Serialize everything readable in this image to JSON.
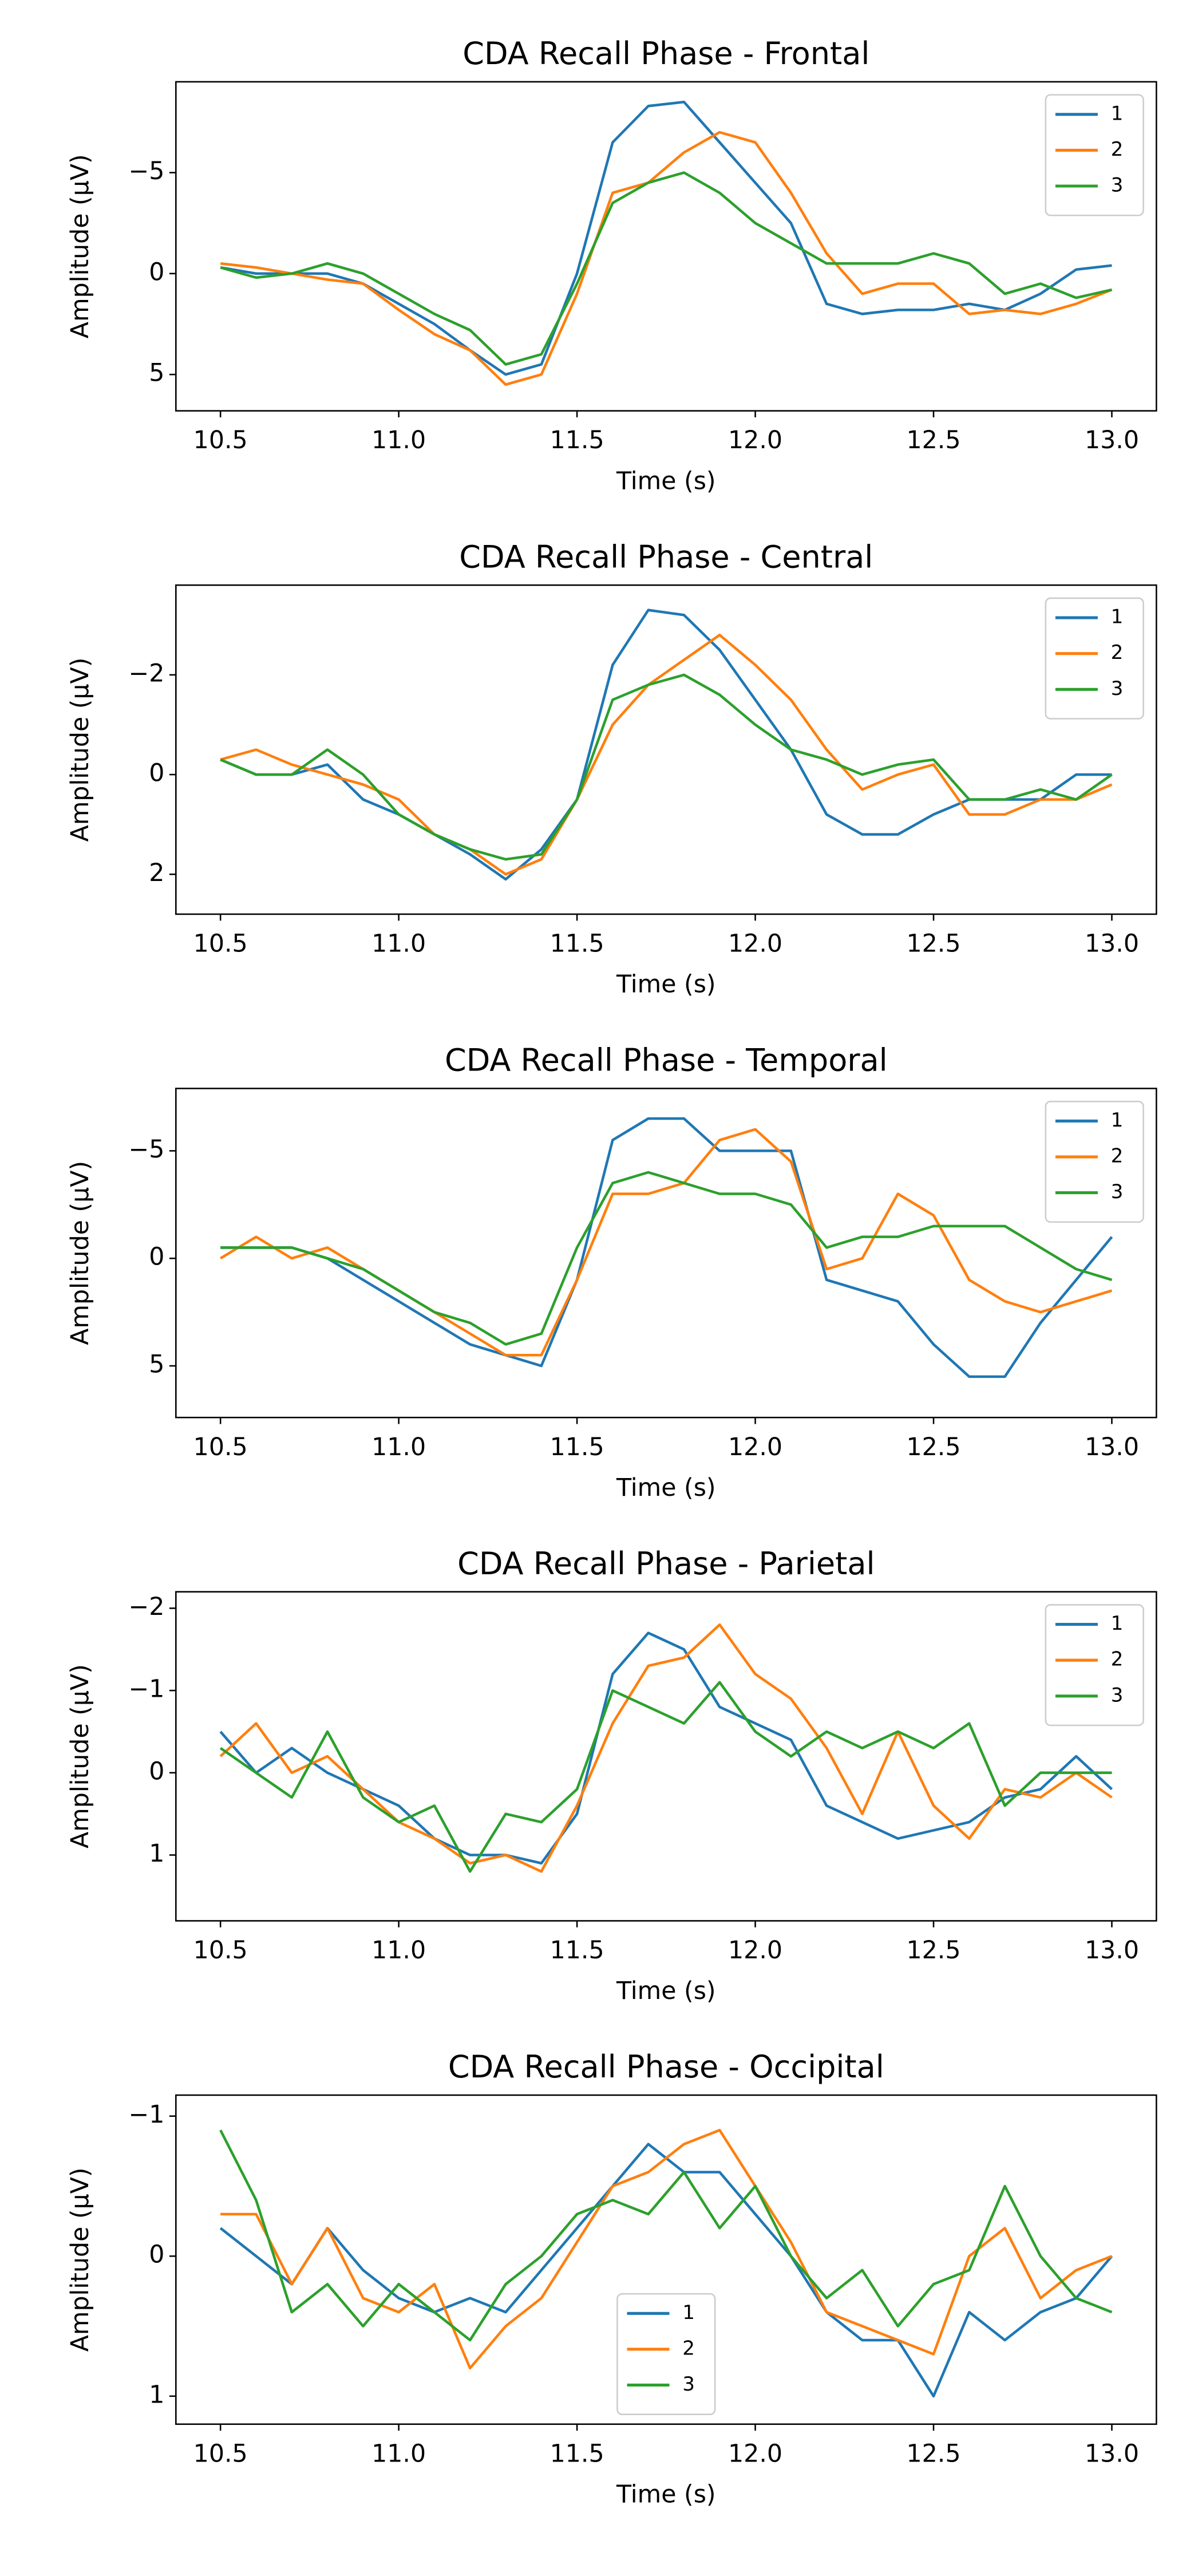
{
  "chart_data": [
    {
      "type": "line",
      "title": "CDA Recall Phase - Frontal",
      "xlabel": "Time (s)",
      "ylabel": "Amplitude (µV)",
      "legend": "upper right",
      "x": [
        10.5,
        10.6,
        10.7,
        10.8,
        10.9,
        11.0,
        11.1,
        11.2,
        11.3,
        11.4,
        11.5,
        11.6,
        11.7,
        11.8,
        11.9,
        12.0,
        12.1,
        12.2,
        12.3,
        12.4,
        12.5,
        12.6,
        12.7,
        12.8,
        12.9,
        13.0
      ],
      "xlim": [
        10.375,
        13.125
      ],
      "xticks": [
        10.5,
        {
          "value": 11,
          "label": "11.0"
        },
        11.5,
        {
          "value": 12,
          "label": "12.0"
        },
        12.5,
        {
          "value": 13,
          "label": "13.0"
        }
      ],
      "ylim": [
        6.8,
        -9.5
      ],
      "yticks": [
        5,
        0,
        {
          "value": -5,
          "label": "−5"
        }
      ],
      "series": [
        {
          "name": "1",
          "color": "#1f77b4",
          "values": [
            -0.3,
            0,
            0,
            0,
            0.5,
            1.5,
            2.5,
            3.8,
            5.0,
            4.5,
            0,
            -6.5,
            -8.3,
            -8.5,
            -6.5,
            -4.5,
            -2.5,
            1.5,
            2.0,
            1.8,
            1.8,
            1.5,
            1.8,
            1.0,
            -0.2,
            -0.4
          ]
        },
        {
          "name": "2",
          "color": "#ff7f0e",
          "values": [
            -0.5,
            -0.3,
            0,
            0.3,
            0.5,
            1.8,
            3,
            3.8,
            5.5,
            5,
            1,
            -4,
            -4.5,
            -6,
            -7,
            -6.5,
            -4,
            -1,
            1,
            0.5,
            0.5,
            2,
            1.8,
            2,
            1.5,
            0.8
          ]
        },
        {
          "name": "3",
          "color": "#2ca02c",
          "values": [
            -0.3,
            0.2,
            0,
            -0.5,
            0,
            1,
            2,
            2.8,
            4.5,
            4,
            0.5,
            -3.5,
            -4.5,
            -5,
            -4,
            -2.5,
            -1.5,
            -0.5,
            -0.5,
            -0.5,
            -1,
            -0.5,
            1.0,
            0.5,
            1.2,
            0.8
          ]
        }
      ]
    },
    {
      "type": "line",
      "title": "CDA Recall Phase - Central",
      "xlabel": "Time (s)",
      "ylabel": "Amplitude (µV)",
      "legend": "upper right",
      "x": [
        10.5,
        10.6,
        10.7,
        10.8,
        10.9,
        11.0,
        11.1,
        11.2,
        11.3,
        11.4,
        11.5,
        11.6,
        11.7,
        11.8,
        11.9,
        12.0,
        12.1,
        12.2,
        12.3,
        12.4,
        12.5,
        12.6,
        12.7,
        12.8,
        12.9,
        13.0
      ],
      "xlim": [
        10.375,
        13.125
      ],
      "xticks": [
        10.5,
        {
          "value": 11,
          "label": "11.0"
        },
        11.5,
        {
          "value": 12,
          "label": "12.0"
        },
        12.5,
        {
          "value": 13,
          "label": "13.0"
        }
      ],
      "ylim": [
        2.8,
        -3.8
      ],
      "yticks": [
        2,
        0,
        {
          "value": -2,
          "label": "−2"
        }
      ],
      "series": [
        {
          "name": "1",
          "color": "#1f77b4",
          "values": [
            -0.3,
            0,
            0,
            -0.2,
            0.5,
            0.8,
            1.2,
            1.6,
            2.1,
            1.5,
            0.5,
            -2.2,
            -3.3,
            -3.2,
            -2.5,
            -1.5,
            -0.5,
            0.8,
            1.2,
            1.2,
            0.8,
            0.5,
            0.5,
            0.5,
            0,
            0
          ]
        },
        {
          "name": "2",
          "color": "#ff7f0e",
          "values": [
            -0.3,
            -0.5,
            -0.2,
            0,
            0.2,
            0.5,
            1.2,
            1.5,
            2.0,
            1.7,
            0.5,
            -1,
            -1.8,
            -2.3,
            -2.8,
            -2.2,
            -1.5,
            -0.5,
            0.3,
            0,
            -0.2,
            0.8,
            0.8,
            0.5,
            0.5,
            0.2
          ]
        },
        {
          "name": "3",
          "color": "#2ca02c",
          "values": [
            -0.3,
            0,
            0,
            -0.5,
            0,
            0.8,
            1.2,
            1.5,
            1.7,
            1.6,
            0.5,
            -1.5,
            -1.8,
            -2,
            -1.6,
            -1.0,
            -0.5,
            -0.3,
            0,
            -0.2,
            -0.3,
            0.5,
            0.5,
            0.3,
            0.5,
            0
          ]
        }
      ]
    },
    {
      "type": "line",
      "title": "CDA Recall Phase - Temporal",
      "xlabel": "Time (s)",
      "ylabel": "Amplitude (µV)",
      "legend": "upper right",
      "x": [
        10.5,
        10.6,
        10.7,
        10.8,
        10.9,
        11.0,
        11.1,
        11.2,
        11.3,
        11.4,
        11.5,
        11.6,
        11.7,
        11.8,
        11.9,
        12.0,
        12.1,
        12.2,
        12.3,
        12.4,
        12.5,
        12.6,
        12.7,
        12.8,
        12.9,
        13.0
      ],
      "xlim": [
        10.375,
        13.125
      ],
      "xticks": [
        10.5,
        {
          "value": 11,
          "label": "11.0"
        },
        11.5,
        {
          "value": 12,
          "label": "12.0"
        },
        12.5,
        {
          "value": 13,
          "label": "13.0"
        }
      ],
      "ylim": [
        7.4,
        -7.9
      ],
      "yticks": [
        5,
        0,
        {
          "value": -5,
          "label": "−5"
        }
      ],
      "series": [
        {
          "name": "1",
          "color": "#1f77b4",
          "values": [
            -0.5,
            -0.5,
            -0.5,
            0,
            1,
            2,
            3,
            4,
            4.5,
            5,
            1,
            -5.5,
            -6.5,
            -6.5,
            -5,
            -5,
            -5,
            1,
            1.5,
            2,
            4,
            5.5,
            5.5,
            3,
            1,
            -1
          ]
        },
        {
          "name": "2",
          "color": "#ff7f0e",
          "values": [
            0,
            -1,
            0,
            -0.5,
            0.5,
            1.5,
            2.5,
            3.5,
            4.5,
            4.5,
            1,
            -3,
            -3,
            -3.5,
            -5.5,
            -6,
            -4.5,
            0.5,
            0,
            -3,
            -2,
            1,
            2,
            2.5,
            2,
            1.5
          ]
        },
        {
          "name": "3",
          "color": "#2ca02c",
          "values": [
            -0.5,
            -0.5,
            -0.5,
            0,
            0.5,
            1.5,
            2.5,
            3,
            4,
            3.5,
            -0.5,
            -3.5,
            -4,
            -3.5,
            -3,
            -3,
            -2.5,
            -0.5,
            -1,
            -1,
            -1.5,
            -1.5,
            -1.5,
            -0.5,
            0.5,
            1
          ]
        }
      ]
    },
    {
      "type": "line",
      "title": "CDA Recall Phase - Parietal",
      "xlabel": "Time (s)",
      "ylabel": "Amplitude (µV)",
      "legend": "upper right",
      "x": [
        10.5,
        10.6,
        10.7,
        10.8,
        10.9,
        11.0,
        11.1,
        11.2,
        11.3,
        11.4,
        11.5,
        11.6,
        11.7,
        11.8,
        11.9,
        12.0,
        12.1,
        12.2,
        12.3,
        12.4,
        12.5,
        12.6,
        12.7,
        12.8,
        12.9,
        13.0
      ],
      "xlim": [
        10.375,
        13.125
      ],
      "xticks": [
        10.5,
        {
          "value": 11,
          "label": "11.0"
        },
        11.5,
        {
          "value": 12,
          "label": "12.0"
        },
        12.5,
        {
          "value": 13,
          "label": "13.0"
        }
      ],
      "ylim": [
        1.8,
        -2.2
      ],
      "yticks": [
        1,
        0,
        {
          "value": -1,
          "label": "−1"
        },
        {
          "value": -2,
          "label": "−2"
        }
      ],
      "series": [
        {
          "name": "1",
          "color": "#1f77b4",
          "values": [
            -0.5,
            0,
            -0.3,
            0,
            0.2,
            0.4,
            0.8,
            1,
            1,
            1.1,
            0.5,
            -1.2,
            -1.7,
            -1.5,
            -0.8,
            -0.6,
            -0.4,
            0.4,
            0.6,
            0.8,
            0.7,
            0.6,
            0.3,
            0.2,
            -0.2,
            0.2
          ]
        },
        {
          "name": "2",
          "color": "#ff7f0e",
          "values": [
            -0.2,
            -0.6,
            0,
            -0.2,
            0.2,
            0.6,
            0.8,
            1.1,
            1.0,
            1.2,
            0.4,
            -0.6,
            -1.3,
            -1.4,
            -1.8,
            -1.2,
            -0.9,
            -0.3,
            0.5,
            -0.5,
            0.4,
            0.8,
            0.2,
            0.3,
            0,
            0.3
          ]
        },
        {
          "name": "3",
          "color": "#2ca02c",
          "values": [
            -0.3,
            0,
            0.3,
            -0.5,
            0.3,
            0.6,
            0.4,
            1.2,
            0.5,
            0.6,
            0.2,
            -1,
            -0.8,
            -0.6,
            -1.1,
            -0.5,
            -0.2,
            -0.5,
            -0.3,
            -0.5,
            -0.3,
            -0.6,
            0.4,
            0,
            0,
            0
          ]
        }
      ]
    },
    {
      "type": "line",
      "title": "CDA Recall Phase - Occipital",
      "xlabel": "Time (s)",
      "ylabel": "Amplitude (µV)",
      "legend": "lower center",
      "x": [
        10.5,
        10.6,
        10.7,
        10.8,
        10.9,
        11.0,
        11.1,
        11.2,
        11.3,
        11.4,
        11.5,
        11.6,
        11.7,
        11.8,
        11.9,
        12.0,
        12.1,
        12.2,
        12.3,
        12.4,
        12.5,
        12.6,
        12.7,
        12.8,
        12.9,
        13.0
      ],
      "xlim": [
        10.375,
        13.125
      ],
      "xticks": [
        10.5,
        {
          "value": 11,
          "label": "11.0"
        },
        11.5,
        {
          "value": 12,
          "label": "12.0"
        },
        12.5,
        {
          "value": 13,
          "label": "13.0"
        }
      ],
      "ylim": [
        1.2,
        -1.15
      ],
      "yticks": [
        1,
        0,
        {
          "value": -1,
          "label": "−1"
        }
      ],
      "series": [
        {
          "name": "1",
          "color": "#1f77b4",
          "values": [
            -0.2,
            0,
            0.2,
            -0.2,
            0.1,
            0.3,
            0.4,
            0.3,
            0.4,
            0.1,
            -0.2,
            -0.5,
            -0.8,
            -0.6,
            -0.6,
            -0.3,
            0,
            0.4,
            0.6,
            0.6,
            1,
            0.4,
            0.6,
            0.4,
            0.3,
            0
          ]
        },
        {
          "name": "2",
          "color": "#ff7f0e",
          "values": [
            -0.3,
            -0.3,
            0.2,
            -0.2,
            0.3,
            0.4,
            0.2,
            0.8,
            0.5,
            0.3,
            -0.1,
            -0.5,
            -0.6,
            -0.8,
            -0.9,
            -0.5,
            -0.1,
            0.4,
            0.5,
            0.6,
            0.7,
            0,
            -0.2,
            0.3,
            0.1,
            0
          ]
        },
        {
          "name": "3",
          "color": "#2ca02c",
          "values": [
            -0.9,
            -0.4,
            0.4,
            0.2,
            0.5,
            0.2,
            0.4,
            0.6,
            0.2,
            0,
            -0.3,
            -0.4,
            -0.3,
            -0.6,
            -0.2,
            -0.5,
            0,
            0.3,
            0.1,
            0.5,
            0.2,
            0.1,
            -0.5,
            0,
            0.3,
            0.4
          ]
        }
      ]
    }
  ]
}
